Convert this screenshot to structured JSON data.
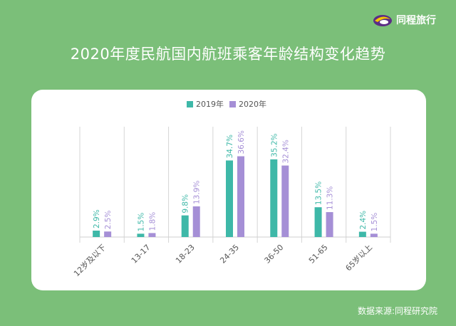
{
  "brand": {
    "name": "同程旅行",
    "logo_icon": "tongcheng-logo-icon"
  },
  "title": "2020年度民航国内航班乘客年龄结构变化趋势",
  "source": "数据来源:同程研究院",
  "colors": {
    "background": "#7bbf79",
    "card": "#ffffff",
    "series2019": "#3eb8a8",
    "series2020": "#a58fd6",
    "grid": "#d6d6d6"
  },
  "chart_data": {
    "type": "bar",
    "title": "",
    "xlabel": "",
    "ylabel": "",
    "ylim": [
      0,
      40
    ],
    "grid": "vertical separators",
    "legend_position": "top-center",
    "categories": [
      "12岁及以下",
      "13-17",
      "18-23",
      "24-35",
      "36-50",
      "51-65",
      "65岁以上"
    ],
    "series": [
      {
        "name": "2019年",
        "values": [
          2.9,
          1.5,
          9.8,
          34.7,
          35.2,
          13.5,
          2.4
        ],
        "labels": [
          "2.9%",
          "1.5%",
          "9.8%",
          "34.7%",
          "35.2%",
          "13.5%",
          "2.4%"
        ],
        "color": "#3eb8a8"
      },
      {
        "name": "2020年",
        "values": [
          2.5,
          1.8,
          13.9,
          36.6,
          32.4,
          11.3,
          1.5
        ],
        "labels": [
          "2.5%",
          "1.8%",
          "13.9%",
          "36.6%",
          "32.4%",
          "11.3%",
          "1.5%"
        ],
        "color": "#a58fd6"
      }
    ]
  }
}
